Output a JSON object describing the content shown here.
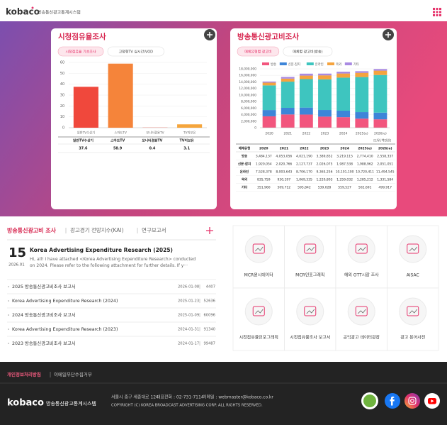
{
  "header": {
    "logo": "kobaco",
    "site_name": "방송통신광고통계시스템"
  },
  "chart_data": [
    {
      "type": "bar",
      "title": "시청점유율조사",
      "tabs": [
        "시청점유율 기초조사",
        "고정형TV 실시간/VOD"
      ],
      "categories": [
        "일반TV수상기",
        "스마트TV",
        "모니터겸용TV",
        "TV미보유"
      ],
      "values": [
        37.6,
        58.9,
        0.4,
        3.1
      ],
      "colors": [
        "#f0483c",
        "#f5843a",
        "#e9b0a8",
        "#f5a53c"
      ],
      "ylim": [
        0,
        60
      ],
      "yticks": [
        0,
        10,
        20,
        30,
        40,
        50,
        60
      ],
      "grid": true
    },
    {
      "type": "stacked_bar",
      "title": "방송통신광고비조사",
      "tabs": [
        "매체유형별 광고비",
        "매체별 광고비(방송)"
      ],
      "table_header": "매체유형",
      "unit": "[단위:백만원]",
      "categories": [
        "2020",
        "2021",
        "2022",
        "2023",
        "2024",
        "2025(e)",
        "2026(e)"
      ],
      "series": [
        {
          "name": "방송",
          "color": "#f2557d",
          "values": [
            3484137,
            4053056,
            4021190,
            3389852,
            3219115,
            2774410,
            2558337
          ],
          "value_labels": [
            "3,484,137",
            "4,053,056",
            "4,021,190",
            "3,389,852",
            "3,219,115",
            "2,774,410",
            "2,558,337"
          ]
        },
        {
          "name": "신문·잡지",
          "color": "#3d85d8",
          "values": [
            1920054,
            2020766,
            2127737,
            2026075,
            1987538,
            1988962,
            2051051
          ],
          "value_labels": [
            "1,920,054",
            "2,020,766",
            "2,127,737",
            "2,026,075",
            "1,987,538",
            "1,988,962",
            "2,051,051"
          ]
        },
        {
          "name": "온라인",
          "color": "#3ec5bf",
          "values": [
            7528378,
            8003643,
            8706170,
            9365256,
            10101100,
            10720411,
            11494545
          ],
          "value_labels": [
            "7,528,378",
            "8,003,643",
            "8,706,170",
            "9,365,256",
            "10,101,100",
            "10,720,411",
            "11,494,545"
          ]
        },
        {
          "name": "옥외",
          "color": "#f5a33e",
          "values": [
            835759,
            930197,
            1069335,
            1220803,
            1259032,
            1285212,
            1331584
          ],
          "value_labels": [
            "835,759",
            "930,197",
            "1,069,335",
            "1,220,803",
            "1,259,032",
            "1,285,212",
            "1,331,584"
          ]
        },
        {
          "name": "기타",
          "color": "#a98ae2",
          "values": [
            351960,
            509712,
            595842,
            539028,
            559527,
            502691,
            499917
          ],
          "value_labels": [
            "351,960",
            "509,712",
            "595,842",
            "539,028",
            "559,527",
            "502,691",
            "499,917"
          ]
        }
      ],
      "ylim": [
        0,
        18000000
      ],
      "yticks": [
        0,
        {
          "value": 2000000,
          "label": "2,000,000"
        },
        {
          "value": 4000000,
          "label": "4,000,000"
        },
        {
          "value": 6000000,
          "label": "6,000,000"
        },
        {
          "value": 8000000,
          "label": "8,000,000"
        },
        {
          "value": 10000000,
          "label": "10,000,000"
        },
        {
          "value": 12000000,
          "label": "12,000,000"
        },
        {
          "value": 14000000,
          "label": "14,000,000"
        },
        {
          "value": 16000000,
          "label": "16,000,000"
        },
        {
          "value": 18000000,
          "label": "18,000,000"
        }
      ],
      "grid": true
    }
  ],
  "board": {
    "tabs": [
      "방송통신광고비 조사",
      "광고경기 전망지수(KAI)",
      "연구보고서"
    ],
    "featured": {
      "day": 15,
      "month": "2026.01",
      "title": "Korea Advertising Expenditure Research (2025)",
      "description": "Hi, all! I have attached <Korea Advertising Expenditure Research> conducted on 2024. Please refer to the following attachment for further details.     If y···"
    },
    "posts": [
      {
        "title": "2025 방송통신광고비조사 보고서",
        "date": "2026-01-08",
        "views": 4407
      },
      {
        "title": "Korea Advertising Expenditure Research (2024)",
        "date": "2025-01-23",
        "views": 52636
      },
      {
        "title": "2024 방송통신광고비조사 보고서",
        "date": "2025-01-09",
        "views": 60096
      },
      {
        "title": "Korea Advertising Expenditure Research (2023)",
        "date": "2024-01-31",
        "views": 91340
      },
      {
        "title": "2023 방송통신광고비조사 보고서",
        "date": "2024-01-17",
        "views": 99487
      }
    ]
  },
  "services": [
    "MCR원시데이터",
    "MCR인포그래픽",
    "해외 OTT시장 조사",
    "AISAC",
    "시청점유율인포그래픽",
    "시청점유율조사 보고서",
    "공익광고 데이터광장",
    "광고 용어사전"
  ],
  "footer": {
    "links": [
      "개인정보처리방침",
      "이메일무단수집거부"
    ],
    "address": "서울시 중구 세종대로 124",
    "phone": "대표전화 : 02-731-7114",
    "email": "이메일 : webmaster@kobaco.co.kr",
    "copyright": "COPYRIGHT (C) KOREA BROADCAST ADVERTISING CORP. ALL RIGHTS RESERVED.",
    "logo": "kobaco",
    "site_name": "방송통신광고통계시스템"
  }
}
